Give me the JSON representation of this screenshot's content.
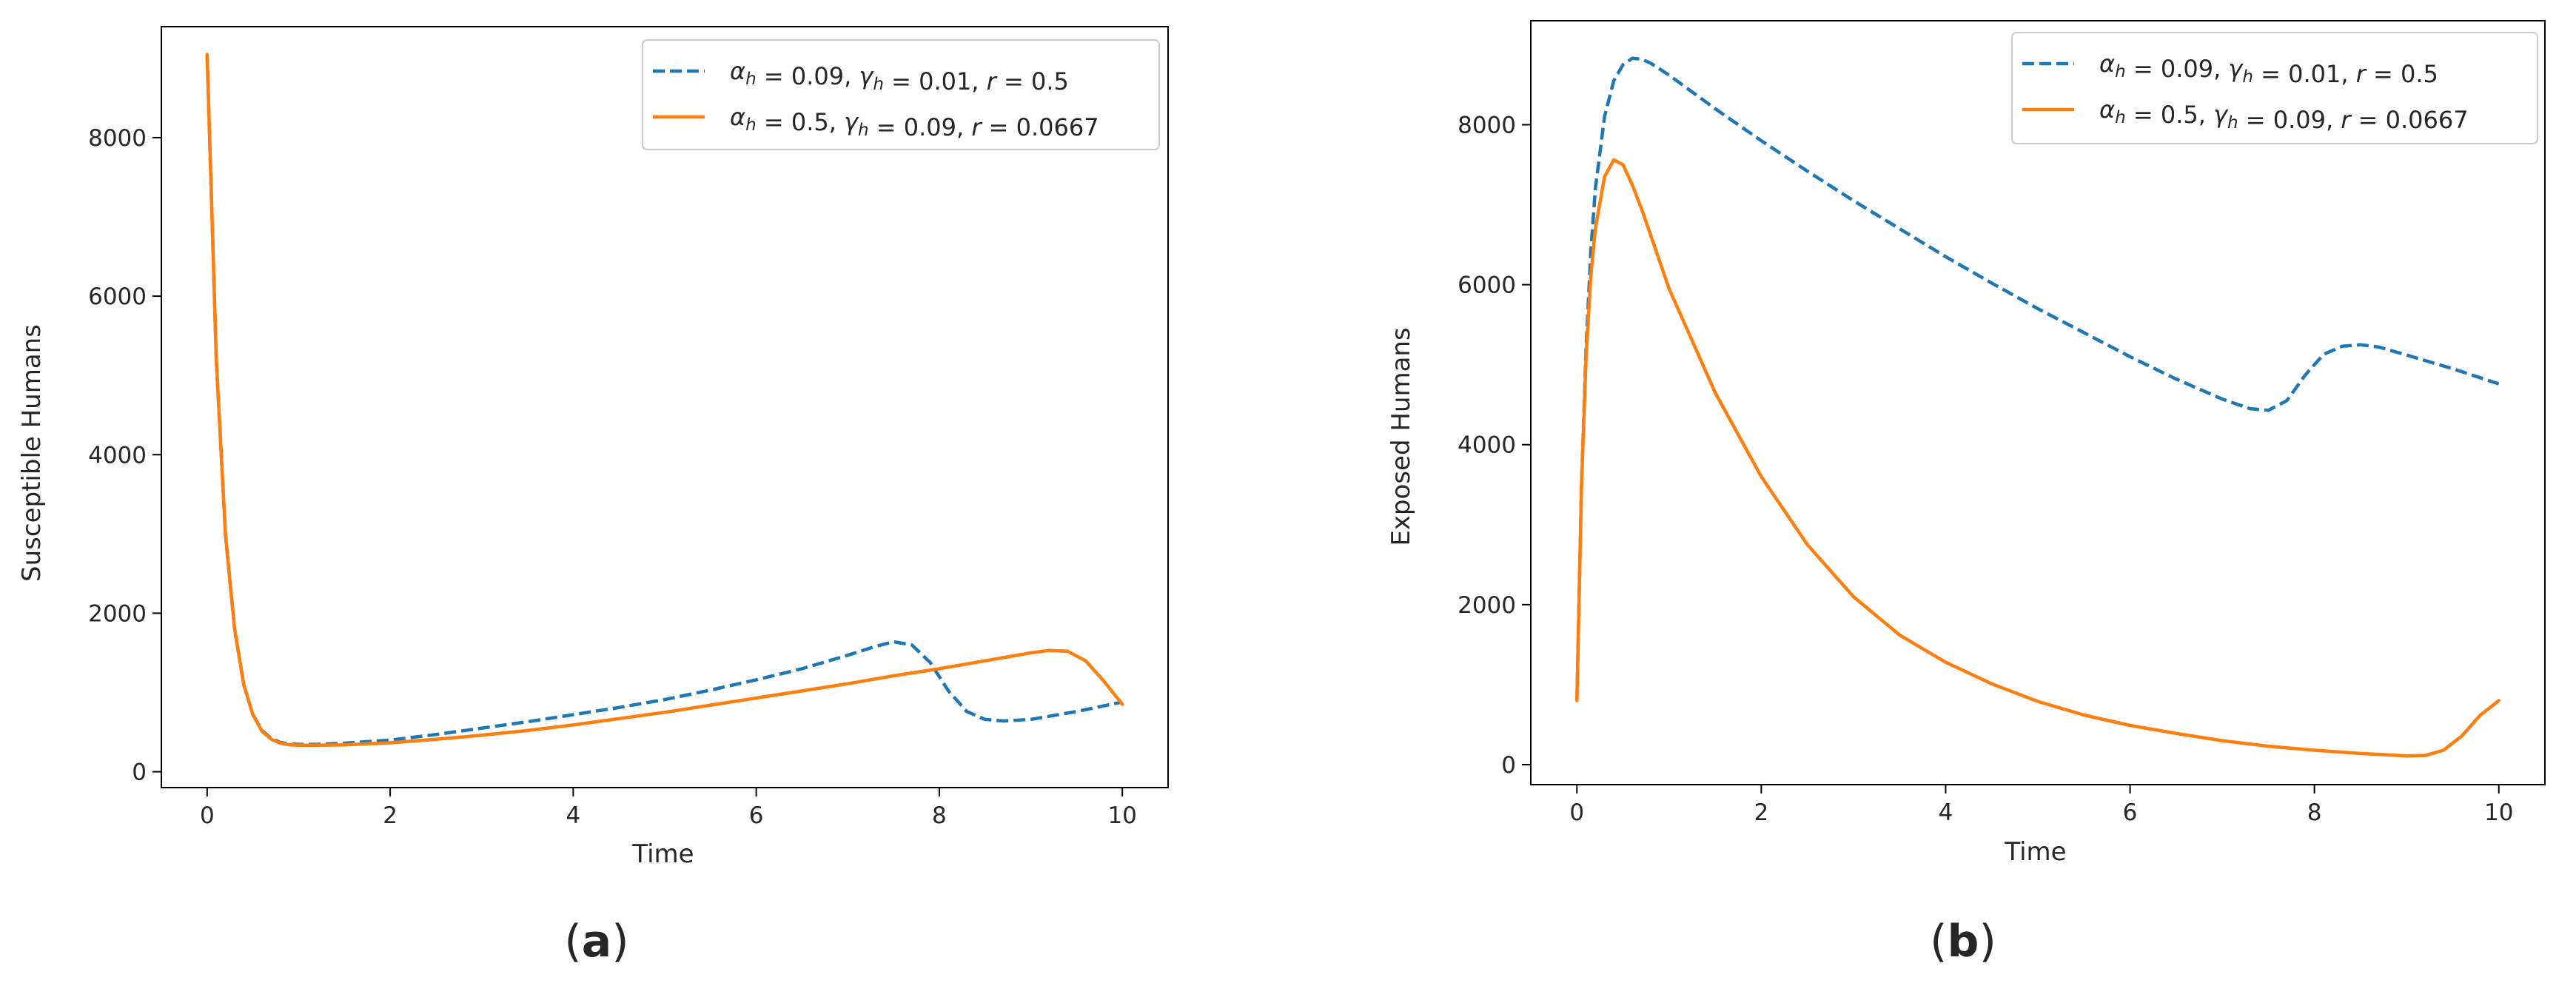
{
  "chart_data": [
    {
      "type": "line",
      "panel_label": "a",
      "title": "",
      "xlabel": "Time",
      "ylabel": "Susceptible Humans",
      "xlim": [
        -0.5,
        10.5
      ],
      "ylim": [
        -200,
        9400
      ],
      "xticks": [
        0,
        2,
        4,
        6,
        8,
        10
      ],
      "yticks": [
        0,
        2000,
        4000,
        6000,
        8000
      ],
      "grid": false,
      "legend_position": "top-right",
      "series": [
        {
          "name": "α_h = 0.09, γ_h = 0.01, r = 0.5",
          "legend_parts": {
            "a_val": "0.09",
            "g_val": "0.01",
            "r_val": "0.5"
          },
          "color": "#1f77b4",
          "style": "dashed",
          "x": [
            0,
            0.1,
            0.2,
            0.3,
            0.4,
            0.5,
            0.6,
            0.7,
            0.8,
            0.9,
            1.0,
            1.2,
            1.5,
            2.0,
            2.5,
            3.0,
            3.5,
            4.0,
            4.5,
            5.0,
            5.5,
            6.0,
            6.5,
            7.0,
            7.3,
            7.5,
            7.7,
            7.9,
            8.1,
            8.3,
            8.5,
            8.7,
            9.0,
            9.5,
            10.0
          ],
          "y": [
            9050,
            5200,
            3000,
            1800,
            1100,
            720,
            520,
            420,
            370,
            350,
            345,
            345,
            360,
            400,
            470,
            550,
            630,
            720,
            810,
            910,
            1030,
            1160,
            1300,
            1470,
            1580,
            1640,
            1600,
            1380,
            1020,
            760,
            660,
            640,
            660,
            760,
            880
          ]
        },
        {
          "name": "α_h = 0.5, γ_h = 0.09, r = 0.0667",
          "legend_parts": {
            "a_val": "0.5",
            "g_val": "0.09",
            "r_val": "0.0667"
          },
          "color": "#ff7f0e",
          "style": "solid",
          "x": [
            0,
            0.1,
            0.2,
            0.3,
            0.4,
            0.5,
            0.6,
            0.7,
            0.8,
            0.9,
            1.0,
            1.2,
            1.5,
            2.0,
            2.5,
            3.0,
            3.5,
            4.0,
            4.5,
            5.0,
            5.5,
            6.0,
            6.5,
            7.0,
            7.5,
            8.0,
            8.5,
            9.0,
            9.2,
            9.4,
            9.6,
            9.8,
            10.0
          ],
          "y": [
            9050,
            5200,
            3000,
            1800,
            1100,
            720,
            510,
            410,
            360,
            340,
            335,
            335,
            340,
            365,
            410,
            460,
            520,
            590,
            670,
            750,
            840,
            930,
            1020,
            1110,
            1210,
            1300,
            1400,
            1500,
            1530,
            1520,
            1400,
            1140,
            850
          ]
        }
      ]
    },
    {
      "type": "line",
      "panel_label": "b",
      "title": "",
      "xlabel": "Time",
      "ylabel": "Exposed Humans",
      "xlim": [
        -0.5,
        10.5
      ],
      "ylim": [
        -250,
        9300
      ],
      "xticks": [
        0,
        2,
        4,
        6,
        8,
        10
      ],
      "yticks": [
        0,
        2000,
        4000,
        6000,
        8000
      ],
      "grid": false,
      "legend_position": "top-right",
      "series": [
        {
          "name": "α_h = 0.09, γ_h = 0.01, r = 0.5",
          "legend_parts": {
            "a_val": "0.09",
            "g_val": "0.01",
            "r_val": "0.5"
          },
          "color": "#1f77b4",
          "style": "dashed",
          "x": [
            0,
            0.05,
            0.1,
            0.15,
            0.2,
            0.3,
            0.4,
            0.5,
            0.6,
            0.7,
            0.8,
            1.0,
            1.5,
            2.0,
            2.5,
            3.0,
            3.5,
            4.0,
            4.5,
            5.0,
            5.5,
            6.0,
            6.5,
            7.0,
            7.3,
            7.5,
            7.7,
            7.9,
            8.1,
            8.3,
            8.5,
            8.7,
            9.0,
            9.5,
            10.0
          ],
          "y": [
            800,
            3500,
            5200,
            6400,
            7200,
            8100,
            8550,
            8750,
            8830,
            8820,
            8770,
            8620,
            8200,
            7800,
            7420,
            7050,
            6700,
            6350,
            6020,
            5700,
            5400,
            5100,
            4820,
            4570,
            4450,
            4430,
            4550,
            4870,
            5130,
            5230,
            5250,
            5220,
            5120,
            4950,
            4760
          ]
        },
        {
          "name": "α_h = 0.5, γ_h = 0.09, r = 0.0667",
          "legend_parts": {
            "a_val": "0.5",
            "g_val": "0.09",
            "r_val": "0.0667"
          },
          "color": "#ff7f0e",
          "style": "solid",
          "x": [
            0,
            0.05,
            0.1,
            0.15,
            0.2,
            0.3,
            0.4,
            0.5,
            0.6,
            0.7,
            0.8,
            1.0,
            1.5,
            2.0,
            2.5,
            3.0,
            3.5,
            4.0,
            4.5,
            5.0,
            5.5,
            6.0,
            6.5,
            7.0,
            7.5,
            8.0,
            8.5,
            9.0,
            9.2,
            9.4,
            9.6,
            9.8,
            10.0
          ],
          "y": [
            800,
            3500,
            5100,
            6100,
            6700,
            7350,
            7560,
            7500,
            7250,
            6950,
            6620,
            5950,
            4650,
            3600,
            2750,
            2100,
            1620,
            1280,
            1010,
            790,
            620,
            490,
            390,
            300,
            230,
            180,
            140,
            110,
            115,
            180,
            360,
            620,
            800
          ]
        }
      ]
    }
  ]
}
